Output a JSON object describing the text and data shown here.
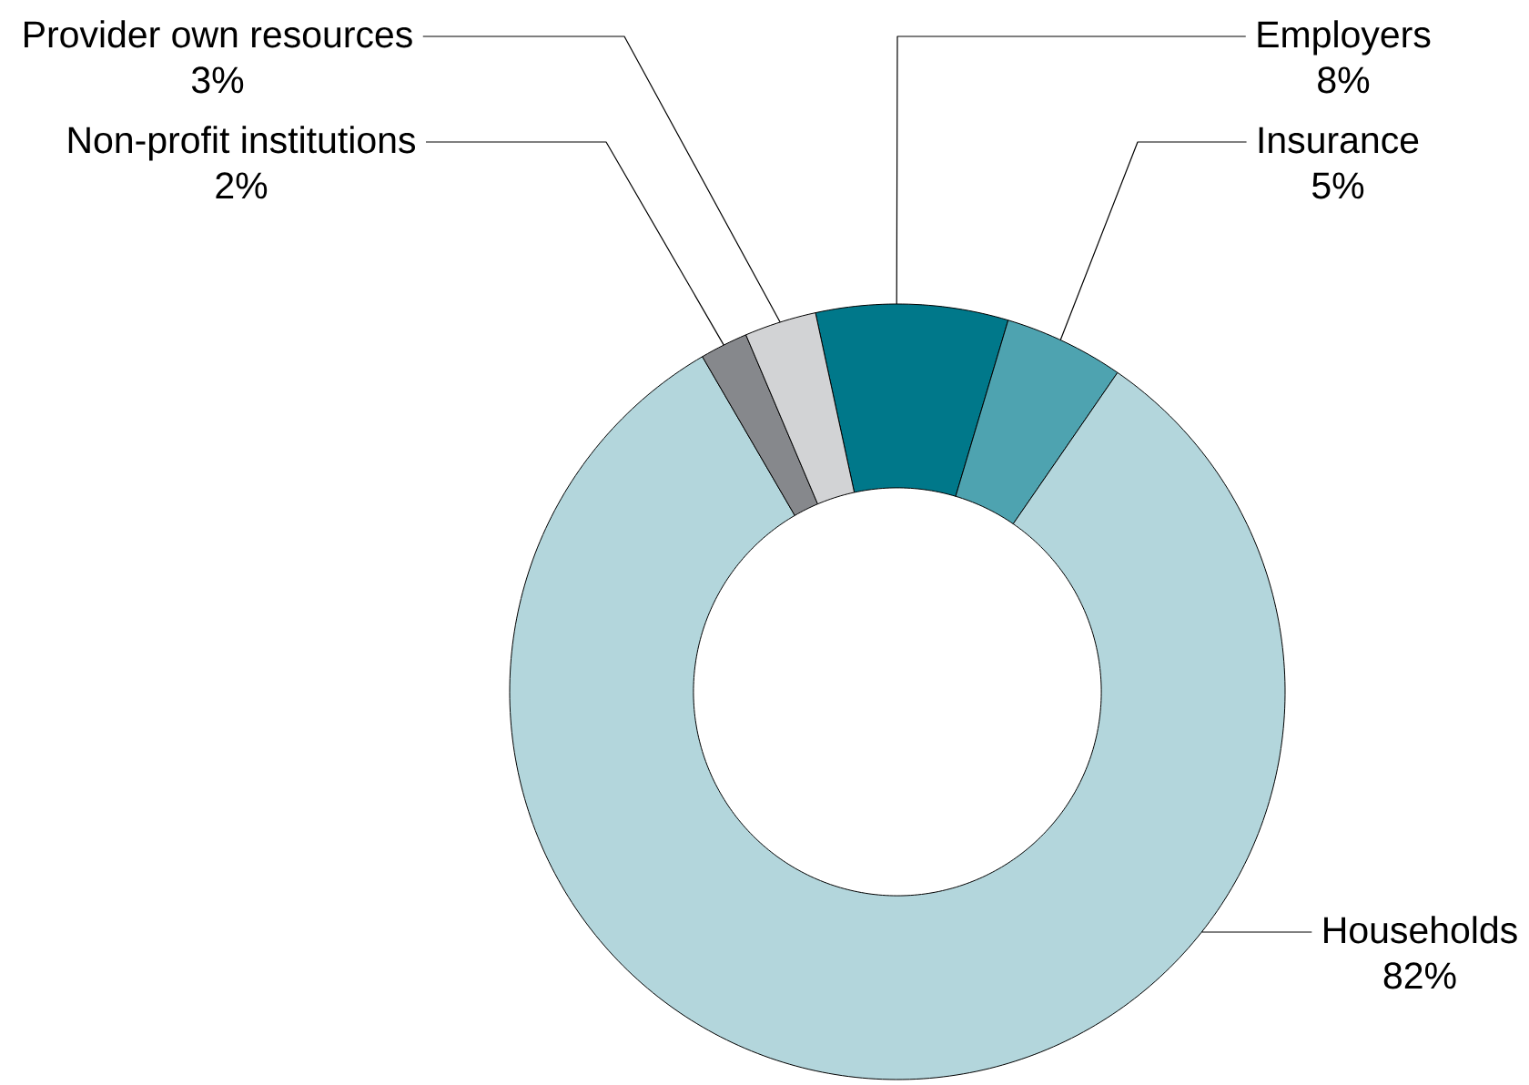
{
  "chart_data": {
    "type": "donut",
    "categories": [
      "Employers",
      "Insurance",
      "Households",
      "Non-profit institutions",
      "Provider own resources"
    ],
    "values": [
      8,
      5,
      82,
      2,
      3
    ],
    "colors": [
      "#00788a",
      "#4ea3b0",
      "#b3d6dc",
      "#86888c",
      "#d2d3d5"
    ],
    "value_labels": [
      "8%",
      "5%",
      "82%",
      "2%",
      "3%"
    ]
  }
}
